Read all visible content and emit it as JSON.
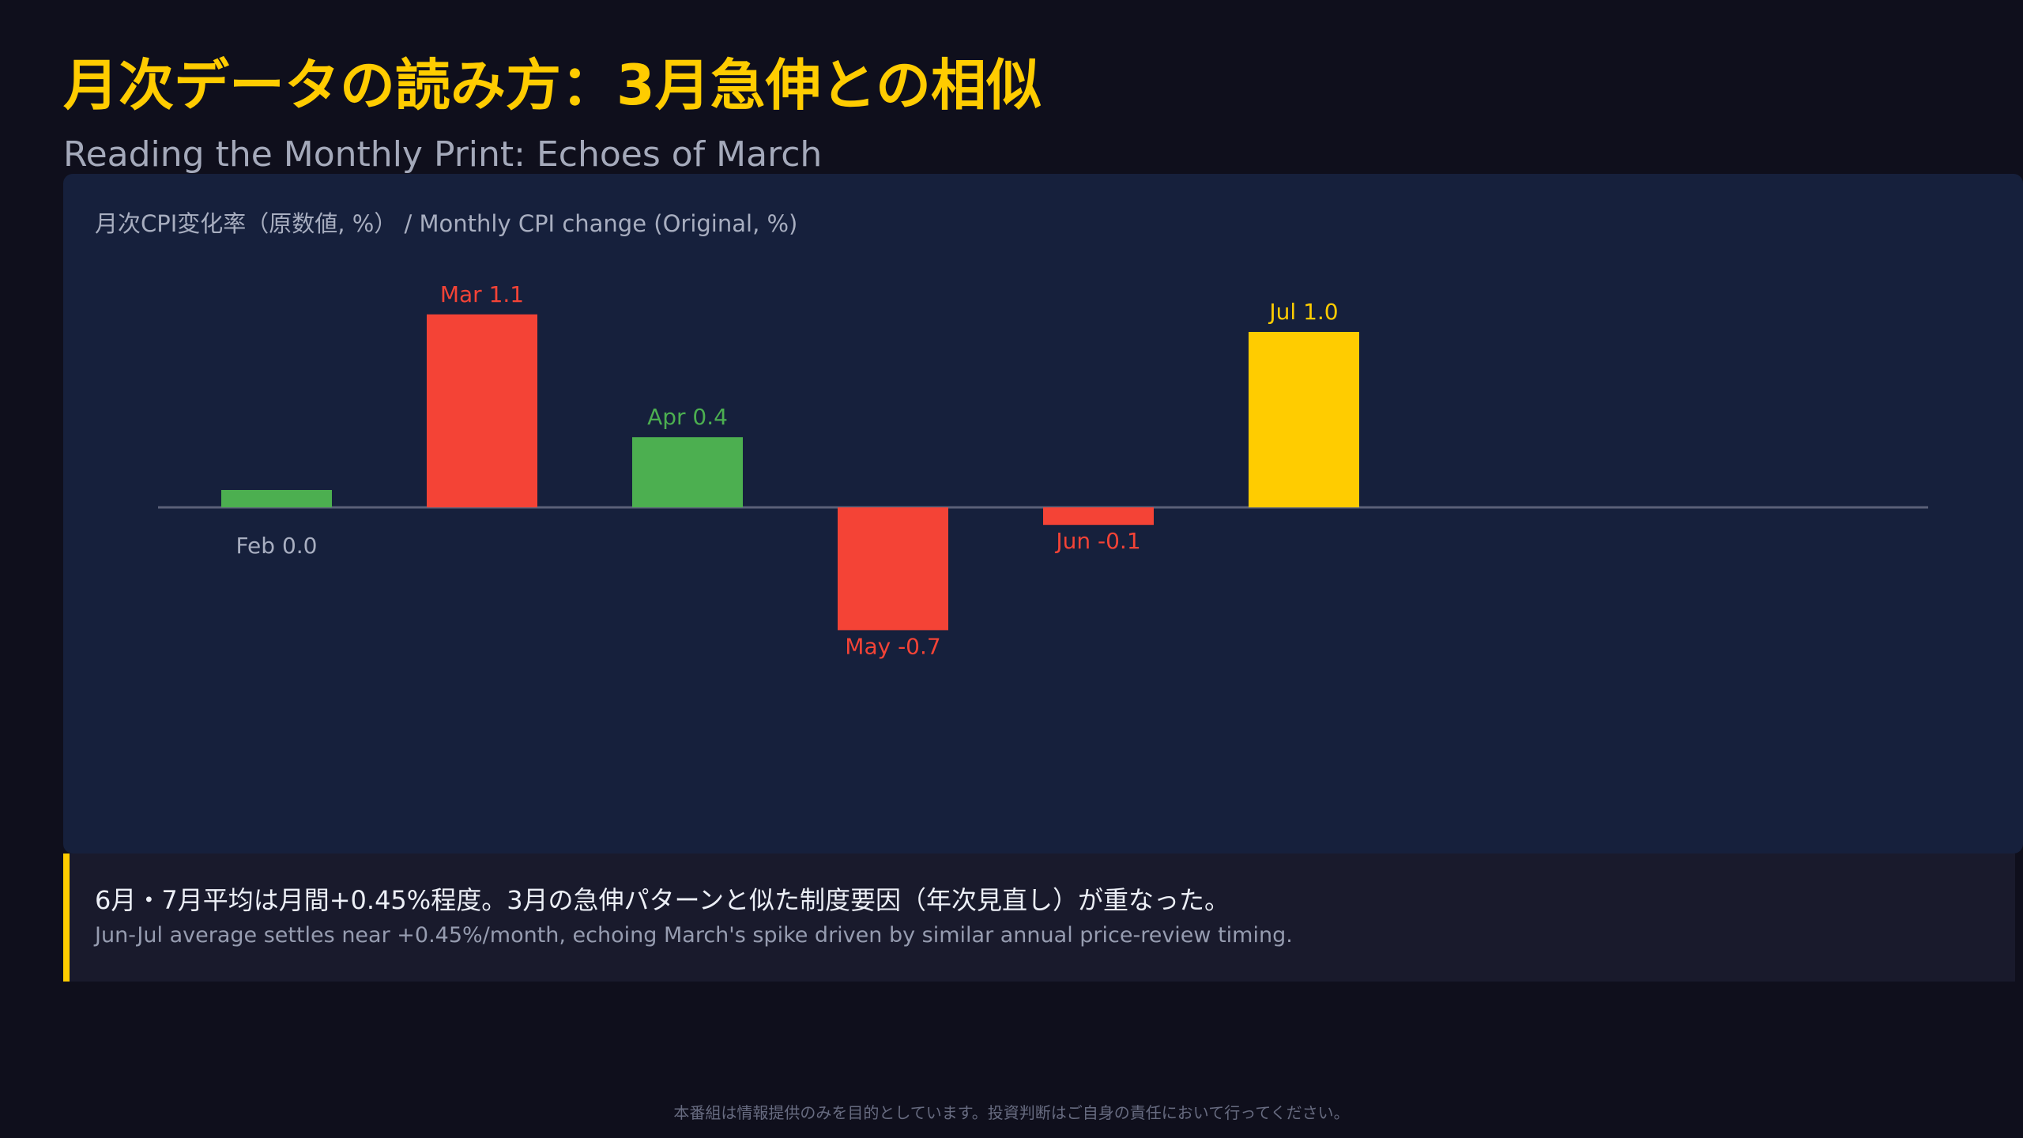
{
  "header": {
    "title": "月次データの読み方：3月急伸との相似",
    "subtitle": "Reading the Monthly Print: Echoes of March"
  },
  "chart_data": {
    "type": "bar",
    "label": "月次CPI変化率（原数値, %） / Monthly CPI change (Original, %)",
    "categories": [
      "Feb",
      "Mar",
      "Apr",
      "May",
      "Jun",
      "Jul"
    ],
    "values": [
      0.0,
      1.1,
      0.4,
      -0.7,
      -0.1,
      1.0
    ],
    "bar_colors": [
      "#4caf50",
      "#f44336",
      "#4caf50",
      "#f44336",
      "#f44336",
      "#ffcc00"
    ],
    "data_labels": [
      "Feb 0.0",
      "Mar 1.1",
      "Apr 0.4",
      "May -0.7",
      "Jun -0.1",
      "Jul 1.0"
    ],
    "label_colors": [
      "#a8aec0",
      "#f44336",
      "#4caf50",
      "#f44336",
      "#f44336",
      "#ffcc00"
    ],
    "grid": false,
    "baseline_color": "#5a6078"
  },
  "note": {
    "ja": "6月・7月平均は月間+0.45%程度。3月の急伸パターンと似た制度要因（年次見直し）が重なった。",
    "en": "Jun-Jul average settles near +0.45%/month, echoing March's spike driven by similar annual price-review timing.",
    "accent_color": "#ffcc00"
  },
  "footer": {
    "disclaimer": "本番組は情報提供のみを目的としています。投資判断はご自身の責任において行ってください。"
  }
}
